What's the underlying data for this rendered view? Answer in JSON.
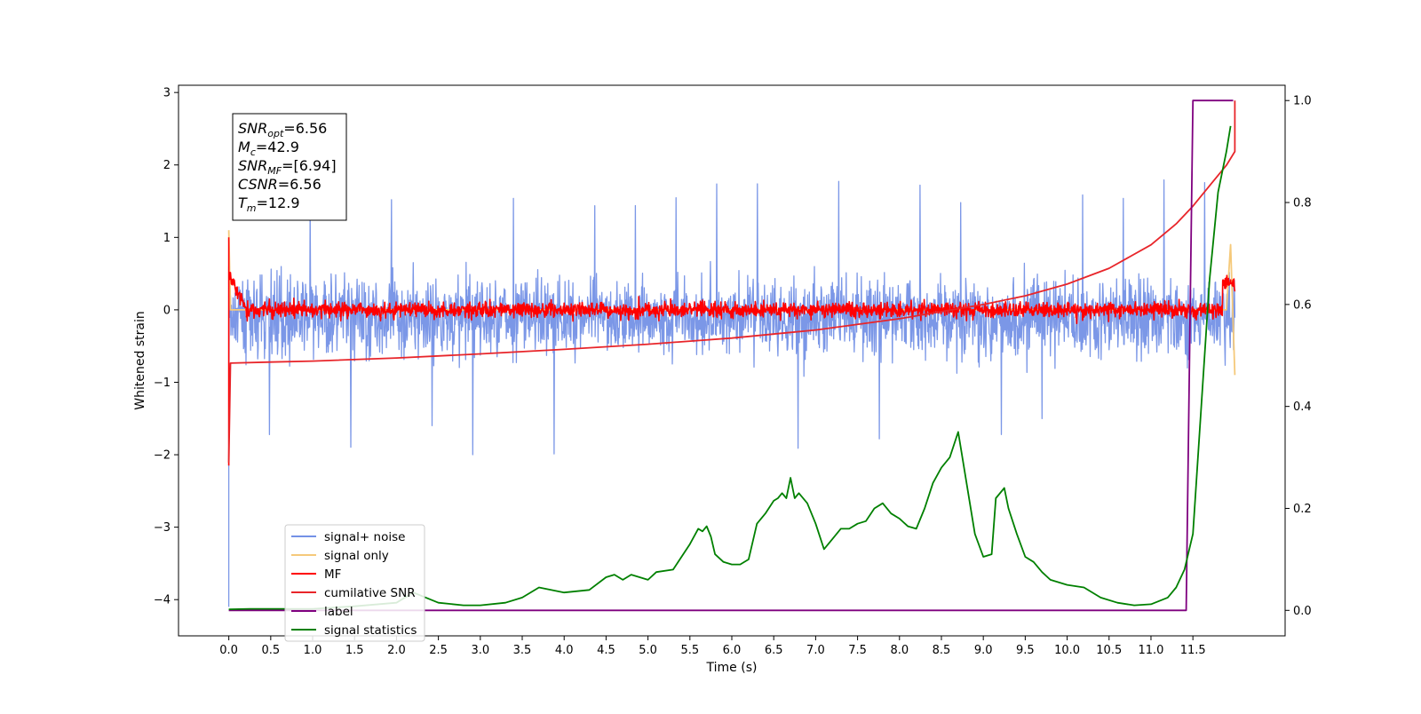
{
  "chart_data": {
    "type": "line",
    "xlabel": "Time (s)",
    "ylabel": "Whitened strain",
    "xlim": [
      -0.6,
      12.6
    ],
    "ylim": [
      -4.5,
      3.1
    ],
    "y2lim": [
      -0.05,
      1.03
    ],
    "x_ticks": [
      0.0,
      0.5,
      1.0,
      1.5,
      2.0,
      2.5,
      3.0,
      3.5,
      4.0,
      4.5,
      5.0,
      5.5,
      6.0,
      6.5,
      7.0,
      7.5,
      8.0,
      8.5,
      9.0,
      9.5,
      10.0,
      10.5,
      11.0,
      11.5
    ],
    "x_tick_labels": [
      "0.0",
      "0.5",
      "1.0",
      "1.5",
      "2.0",
      "2.5",
      "3.0",
      "3.5",
      "4.0",
      "4.5",
      "5.0",
      "5.5",
      "6.0",
      "6.5",
      "7.0",
      "7.5",
      "8.0",
      "8.5",
      "9.0",
      "9.5",
      "10.0",
      "10.5",
      "11.0",
      "11.5"
    ],
    "y_ticks": [
      -4,
      -3,
      -2,
      -1,
      0,
      1,
      2,
      3
    ],
    "y_tick_labels": [
      "−4",
      "−3",
      "−2",
      "−1",
      "0",
      "1",
      "2",
      "3"
    ],
    "y2_ticks": [
      0.0,
      0.2,
      0.4,
      0.6,
      0.8,
      1.0
    ],
    "y2_tick_labels": [
      "0.0",
      "0.2",
      "0.4",
      "0.6",
      "0.8",
      "1.0"
    ],
    "legend_position": "lower-left",
    "grid": false,
    "annotation": [
      {
        "base": "SNR",
        "sub": "opt",
        "value": "=6.56"
      },
      {
        "base": "M",
        "sub": "c",
        "value": "=42.9"
      },
      {
        "base": "SNR",
        "sub": "MF",
        "value": "=[6.94]"
      },
      {
        "base": "CSNR",
        "sub": "",
        "value": "=6.56"
      },
      {
        "base": "T",
        "sub": "m",
        "value": "=12.9"
      }
    ],
    "series": [
      {
        "name": "signal+ noise",
        "color": "#7491e6",
        "axis": "left",
        "style": "noise",
        "x_range": [
          0.0,
          12.0
        ],
        "center": -0.1,
        "amplitude": 0.75,
        "extremes": [
          2.15,
          -2.3
        ]
      },
      {
        "name": "signal only",
        "color": "#f5c97a",
        "axis": "left",
        "x": [
          0.0,
          0.02,
          0.05,
          11.9,
          11.95,
          12.0
        ],
        "y": [
          1.1,
          0.0,
          0.0,
          0.0,
          0.9,
          -0.9
        ]
      },
      {
        "name": "MF",
        "color": "#ff0000",
        "axis": "left",
        "style": "noise",
        "x_range": [
          0.0,
          12.0
        ],
        "center": 0.0,
        "amplitude": 0.15
      },
      {
        "name": "cumilative SNR",
        "color": "#e8252a",
        "axis": "right",
        "x": [
          0.0,
          0.02,
          0.5,
          1.0,
          2.0,
          3.0,
          4.0,
          5.0,
          6.0,
          7.0,
          8.0,
          9.0,
          9.5,
          10.0,
          10.5,
          11.0,
          11.3,
          11.5,
          11.7,
          11.9,
          12.0,
          12.0
        ],
        "y": [
          0.29,
          0.485,
          0.487,
          0.489,
          0.495,
          0.503,
          0.512,
          0.522,
          0.534,
          0.55,
          0.572,
          0.6,
          0.617,
          0.64,
          0.671,
          0.717,
          0.758,
          0.793,
          0.833,
          0.873,
          0.9,
          1.0
        ]
      },
      {
        "name": "label",
        "color": "#7f007f",
        "axis": "right",
        "x": [
          0.0,
          11.42,
          11.5,
          11.98
        ],
        "y": [
          0.0,
          0.0,
          1.0,
          1.0
        ]
      },
      {
        "name": "signal statistics",
        "color": "#008000",
        "axis": "right",
        "x": [
          0.0,
          0.25,
          0.5,
          1.0,
          1.5,
          2.0,
          2.2,
          2.5,
          2.8,
          3.0,
          3.3,
          3.5,
          3.7,
          4.0,
          4.3,
          4.5,
          4.6,
          4.7,
          4.8,
          4.9,
          5.0,
          5.1,
          5.3,
          5.5,
          5.6,
          5.65,
          5.7,
          5.75,
          5.8,
          5.9,
          6.0,
          6.1,
          6.2,
          6.3,
          6.4,
          6.5,
          6.55,
          6.6,
          6.65,
          6.7,
          6.75,
          6.8,
          6.9,
          7.0,
          7.1,
          7.2,
          7.3,
          7.4,
          7.5,
          7.6,
          7.7,
          7.8,
          7.9,
          8.0,
          8.1,
          8.2,
          8.3,
          8.4,
          8.5,
          8.6,
          8.7,
          8.8,
          8.9,
          9.0,
          9.1,
          9.15,
          9.25,
          9.3,
          9.4,
          9.5,
          9.6,
          9.7,
          9.8,
          10.0,
          10.2,
          10.4,
          10.6,
          10.8,
          11.0,
          11.2,
          11.3,
          11.4,
          11.5,
          11.6,
          11.7,
          11.8,
          11.9,
          11.95
        ],
        "y": [
          0.002,
          0.003,
          0.003,
          0.003,
          0.008,
          0.015,
          0.035,
          0.015,
          0.01,
          0.01,
          0.015,
          0.025,
          0.045,
          0.035,
          0.04,
          0.065,
          0.07,
          0.06,
          0.07,
          0.065,
          0.06,
          0.075,
          0.08,
          0.13,
          0.16,
          0.155,
          0.165,
          0.145,
          0.11,
          0.095,
          0.09,
          0.09,
          0.1,
          0.17,
          0.19,
          0.215,
          0.22,
          0.23,
          0.22,
          0.26,
          0.22,
          0.23,
          0.21,
          0.17,
          0.12,
          0.14,
          0.16,
          0.16,
          0.17,
          0.175,
          0.2,
          0.21,
          0.19,
          0.18,
          0.165,
          0.16,
          0.2,
          0.25,
          0.28,
          0.3,
          0.35,
          0.25,
          0.15,
          0.105,
          0.11,
          0.22,
          0.24,
          0.2,
          0.15,
          0.105,
          0.095,
          0.075,
          0.06,
          0.05,
          0.045,
          0.025,
          0.015,
          0.01,
          0.012,
          0.025,
          0.045,
          0.08,
          0.15,
          0.4,
          0.65,
          0.82,
          0.9,
          0.95
        ]
      }
    ]
  }
}
